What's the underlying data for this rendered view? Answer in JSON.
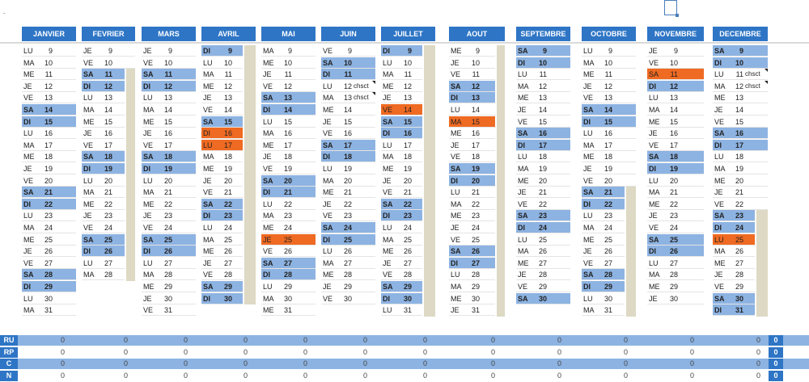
{
  "top_marker": "-",
  "months": [
    {
      "name": "JANVIER",
      "days": [
        [
          "LU",
          "9",
          ""
        ],
        [
          "MA",
          "10",
          ""
        ],
        [
          "ME",
          "11",
          ""
        ],
        [
          "JE",
          "12",
          ""
        ],
        [
          "VE",
          "13",
          ""
        ],
        [
          "SA",
          "14",
          "we"
        ],
        [
          "DI",
          "15",
          "we"
        ],
        [
          "LU",
          "16",
          ""
        ],
        [
          "MA",
          "17",
          ""
        ],
        [
          "ME",
          "18",
          ""
        ],
        [
          "JE",
          "19",
          ""
        ],
        [
          "VE",
          "20",
          ""
        ],
        [
          "SA",
          "21",
          "we"
        ],
        [
          "DI",
          "22",
          "we"
        ],
        [
          "LU",
          "23",
          ""
        ],
        [
          "MA",
          "24",
          ""
        ],
        [
          "ME",
          "25",
          ""
        ],
        [
          "JE",
          "26",
          ""
        ],
        [
          "VE",
          "27",
          ""
        ],
        [
          "SA",
          "28",
          "we"
        ],
        [
          "DI",
          "29",
          "we"
        ],
        [
          "LU",
          "30",
          ""
        ],
        [
          "MA",
          "31",
          ""
        ]
      ]
    },
    {
      "name": "FEVRIER",
      "days": [
        [
          "JE",
          "9",
          ""
        ],
        [
          "VE",
          "10",
          ""
        ],
        [
          "SA",
          "11",
          "we"
        ],
        [
          "DI",
          "12",
          "we"
        ],
        [
          "LU",
          "13",
          ""
        ],
        [
          "MA",
          "14",
          ""
        ],
        [
          "ME",
          "15",
          ""
        ],
        [
          "JE",
          "16",
          ""
        ],
        [
          "VE",
          "17",
          ""
        ],
        [
          "SA",
          "18",
          "we"
        ],
        [
          "DI",
          "19",
          "we"
        ],
        [
          "LU",
          "20",
          ""
        ],
        [
          "MA",
          "21",
          ""
        ],
        [
          "ME",
          "22",
          ""
        ],
        [
          "JE",
          "23",
          ""
        ],
        [
          "VE",
          "24",
          ""
        ],
        [
          "SA",
          "25",
          "we"
        ],
        [
          "DI",
          "26",
          "we"
        ],
        [
          "LU",
          "27",
          ""
        ],
        [
          "MA",
          "28",
          ""
        ]
      ]
    },
    {
      "name": "MARS",
      "days": [
        [
          "JE",
          "9",
          ""
        ],
        [
          "VE",
          "10",
          ""
        ],
        [
          "SA",
          "11",
          "we"
        ],
        [
          "DI",
          "12",
          "we"
        ],
        [
          "LU",
          "13",
          ""
        ],
        [
          "MA",
          "14",
          ""
        ],
        [
          "ME",
          "15",
          ""
        ],
        [
          "JE",
          "16",
          ""
        ],
        [
          "VE",
          "17",
          ""
        ],
        [
          "SA",
          "18",
          "we"
        ],
        [
          "DI",
          "19",
          "we"
        ],
        [
          "LU",
          "20",
          ""
        ],
        [
          "MA",
          "21",
          ""
        ],
        [
          "ME",
          "22",
          ""
        ],
        [
          "JE",
          "23",
          ""
        ],
        [
          "VE",
          "24",
          ""
        ],
        [
          "SA",
          "25",
          "we"
        ],
        [
          "DI",
          "26",
          "we"
        ],
        [
          "LU",
          "27",
          ""
        ],
        [
          "MA",
          "28",
          ""
        ],
        [
          "ME",
          "29",
          ""
        ],
        [
          "JE",
          "30",
          ""
        ],
        [
          "VE",
          "31",
          ""
        ]
      ]
    },
    {
      "name": "AVRIL",
      "days": [
        [
          "DI",
          "9",
          "we"
        ],
        [
          "LU",
          "10",
          ""
        ],
        [
          "MA",
          "11",
          ""
        ],
        [
          "ME",
          "12",
          ""
        ],
        [
          "JE",
          "13",
          ""
        ],
        [
          "VE",
          "14",
          ""
        ],
        [
          "SA",
          "15",
          "we"
        ],
        [
          "DI",
          "16",
          "hol"
        ],
        [
          "LU",
          "17",
          "hol"
        ],
        [
          "MA",
          "18",
          ""
        ],
        [
          "ME",
          "19",
          ""
        ],
        [
          "JE",
          "20",
          ""
        ],
        [
          "VE",
          "21",
          ""
        ],
        [
          "SA",
          "22",
          "we"
        ],
        [
          "DI",
          "23",
          "we"
        ],
        [
          "LU",
          "24",
          ""
        ],
        [
          "MA",
          "25",
          ""
        ],
        [
          "ME",
          "26",
          ""
        ],
        [
          "JE",
          "27",
          ""
        ],
        [
          "VE",
          "28",
          ""
        ],
        [
          "SA",
          "29",
          "we"
        ],
        [
          "DI",
          "30",
          "we"
        ]
      ]
    },
    {
      "name": "MAI",
      "days": [
        [
          "MA",
          "9",
          ""
        ],
        [
          "ME",
          "10",
          ""
        ],
        [
          "JE",
          "11",
          ""
        ],
        [
          "VE",
          "12",
          ""
        ],
        [
          "SA",
          "13",
          "we"
        ],
        [
          "DI",
          "14",
          "we"
        ],
        [
          "LU",
          "15",
          ""
        ],
        [
          "MA",
          "16",
          ""
        ],
        [
          "ME",
          "17",
          ""
        ],
        [
          "JE",
          "18",
          ""
        ],
        [
          "VE",
          "19",
          ""
        ],
        [
          "SA",
          "20",
          "we"
        ],
        [
          "DI",
          "21",
          "we"
        ],
        [
          "LU",
          "22",
          ""
        ],
        [
          "MA",
          "23",
          ""
        ],
        [
          "ME",
          "24",
          ""
        ],
        [
          "JE",
          "25",
          "hol"
        ],
        [
          "VE",
          "26",
          ""
        ],
        [
          "SA",
          "27",
          "we"
        ],
        [
          "DI",
          "28",
          "we"
        ],
        [
          "LU",
          "29",
          ""
        ],
        [
          "MA",
          "30",
          ""
        ],
        [
          "ME",
          "31",
          ""
        ]
      ]
    },
    {
      "name": "JUIN",
      "days": [
        [
          "VE",
          "9",
          ""
        ],
        [
          "SA",
          "10",
          "we"
        ],
        [
          "DI",
          "11",
          "we"
        ],
        [
          "LU",
          "12",
          "",
          "chsct"
        ],
        [
          "MA",
          "13",
          "",
          "chsct"
        ],
        [
          "ME",
          "14",
          ""
        ],
        [
          "JE",
          "15",
          ""
        ],
        [
          "VE",
          "16",
          ""
        ],
        [
          "SA",
          "17",
          "we"
        ],
        [
          "DI",
          "18",
          "we"
        ],
        [
          "LU",
          "19",
          ""
        ],
        [
          "MA",
          "20",
          ""
        ],
        [
          "ME",
          "21",
          ""
        ],
        [
          "JE",
          "22",
          ""
        ],
        [
          "VE",
          "23",
          ""
        ],
        [
          "SA",
          "24",
          "we"
        ],
        [
          "DI",
          "25",
          "we"
        ],
        [
          "LU",
          "26",
          ""
        ],
        [
          "MA",
          "27",
          ""
        ],
        [
          "ME",
          "28",
          ""
        ],
        [
          "JE",
          "29",
          ""
        ],
        [
          "VE",
          "30",
          ""
        ]
      ]
    },
    {
      "name": "JUILLET",
      "days": [
        [
          "DI",
          "9",
          "we"
        ],
        [
          "LU",
          "10",
          ""
        ],
        [
          "MA",
          "11",
          ""
        ],
        [
          "ME",
          "12",
          ""
        ],
        [
          "JE",
          "13",
          ""
        ],
        [
          "VE",
          "14",
          "hol"
        ],
        [
          "SA",
          "15",
          "we"
        ],
        [
          "DI",
          "16",
          "we"
        ],
        [
          "LU",
          "17",
          ""
        ],
        [
          "MA",
          "18",
          ""
        ],
        [
          "ME",
          "19",
          ""
        ],
        [
          "JE",
          "20",
          ""
        ],
        [
          "VE",
          "21",
          ""
        ],
        [
          "SA",
          "22",
          "we"
        ],
        [
          "DI",
          "23",
          "we"
        ],
        [
          "LU",
          "24",
          ""
        ],
        [
          "MA",
          "25",
          ""
        ],
        [
          "ME",
          "26",
          ""
        ],
        [
          "JE",
          "27",
          ""
        ],
        [
          "VE",
          "28",
          ""
        ],
        [
          "SA",
          "29",
          "we"
        ],
        [
          "DI",
          "30",
          "we"
        ],
        [
          "LU",
          "31",
          ""
        ]
      ]
    },
    {
      "name": "AOUT",
      "days": [
        [
          "ME",
          "9",
          ""
        ],
        [
          "JE",
          "10",
          ""
        ],
        [
          "VE",
          "11",
          ""
        ],
        [
          "SA",
          "12",
          "we"
        ],
        [
          "DI",
          "13",
          "we"
        ],
        [
          "LU",
          "14",
          ""
        ],
        [
          "MA",
          "15",
          "hol"
        ],
        [
          "ME",
          "16",
          ""
        ],
        [
          "JE",
          "17",
          ""
        ],
        [
          "VE",
          "18",
          ""
        ],
        [
          "SA",
          "19",
          "we"
        ],
        [
          "DI",
          "20",
          "we"
        ],
        [
          "LU",
          "21",
          ""
        ],
        [
          "MA",
          "22",
          ""
        ],
        [
          "ME",
          "23",
          ""
        ],
        [
          "JE",
          "24",
          ""
        ],
        [
          "VE",
          "25",
          ""
        ],
        [
          "SA",
          "26",
          "we"
        ],
        [
          "DI",
          "27",
          "we"
        ],
        [
          "LU",
          "28",
          ""
        ],
        [
          "MA",
          "29",
          ""
        ],
        [
          "ME",
          "30",
          ""
        ],
        [
          "JE",
          "31",
          ""
        ]
      ]
    },
    {
      "name": "SEPTEMBRE",
      "days": [
        [
          "SA",
          "9",
          "we"
        ],
        [
          "DI",
          "10",
          "we"
        ],
        [
          "LU",
          "11",
          ""
        ],
        [
          "MA",
          "12",
          ""
        ],
        [
          "ME",
          "13",
          ""
        ],
        [
          "JE",
          "14",
          ""
        ],
        [
          "VE",
          "15",
          ""
        ],
        [
          "SA",
          "16",
          "we"
        ],
        [
          "DI",
          "17",
          "we"
        ],
        [
          "LU",
          "18",
          ""
        ],
        [
          "MA",
          "19",
          ""
        ],
        [
          "ME",
          "20",
          ""
        ],
        [
          "JE",
          "21",
          ""
        ],
        [
          "VE",
          "22",
          ""
        ],
        [
          "SA",
          "23",
          "we"
        ],
        [
          "DI",
          "24",
          "we"
        ],
        [
          "LU",
          "25",
          ""
        ],
        [
          "MA",
          "26",
          ""
        ],
        [
          "ME",
          "27",
          ""
        ],
        [
          "JE",
          "28",
          ""
        ],
        [
          "VE",
          "29",
          ""
        ],
        [
          "SA",
          "30",
          "we"
        ]
      ]
    },
    {
      "name": "OCTOBRE",
      "days": [
        [
          "LU",
          "9",
          ""
        ],
        [
          "MA",
          "10",
          ""
        ],
        [
          "ME",
          "11",
          ""
        ],
        [
          "JE",
          "12",
          ""
        ],
        [
          "VE",
          "13",
          ""
        ],
        [
          "SA",
          "14",
          "we"
        ],
        [
          "DI",
          "15",
          "we"
        ],
        [
          "LU",
          "16",
          ""
        ],
        [
          "MA",
          "17",
          ""
        ],
        [
          "ME",
          "18",
          ""
        ],
        [
          "JE",
          "19",
          ""
        ],
        [
          "VE",
          "20",
          ""
        ],
        [
          "SA",
          "21",
          "we"
        ],
        [
          "DI",
          "22",
          "we"
        ],
        [
          "LU",
          "23",
          ""
        ],
        [
          "MA",
          "24",
          ""
        ],
        [
          "ME",
          "25",
          ""
        ],
        [
          "JE",
          "26",
          ""
        ],
        [
          "VE",
          "27",
          ""
        ],
        [
          "SA",
          "28",
          "we"
        ],
        [
          "DI",
          "29",
          "we"
        ],
        [
          "LU",
          "30",
          ""
        ],
        [
          "MA",
          "31",
          ""
        ]
      ]
    },
    {
      "name": "NOVEMBRE",
      "days": [
        [
          "JE",
          "9",
          ""
        ],
        [
          "VE",
          "10",
          ""
        ],
        [
          "SA",
          "11",
          "hol"
        ],
        [
          "DI",
          "12",
          "we"
        ],
        [
          "LU",
          "13",
          ""
        ],
        [
          "MA",
          "14",
          ""
        ],
        [
          "ME",
          "15",
          ""
        ],
        [
          "JE",
          "16",
          ""
        ],
        [
          "VE",
          "17",
          ""
        ],
        [
          "SA",
          "18",
          "we"
        ],
        [
          "DI",
          "19",
          "we"
        ],
        [
          "LU",
          "20",
          ""
        ],
        [
          "MA",
          "21",
          ""
        ],
        [
          "ME",
          "22",
          ""
        ],
        [
          "JE",
          "23",
          ""
        ],
        [
          "VE",
          "24",
          ""
        ],
        [
          "SA",
          "25",
          "we"
        ],
        [
          "DI",
          "26",
          "we"
        ],
        [
          "LU",
          "27",
          ""
        ],
        [
          "MA",
          "28",
          ""
        ],
        [
          "ME",
          "29",
          ""
        ],
        [
          "JE",
          "30",
          ""
        ]
      ]
    },
    {
      "name": "DECEMBRE",
      "days": [
        [
          "SA",
          "9",
          "we"
        ],
        [
          "DI",
          "10",
          "we"
        ],
        [
          "LU",
          "11",
          "",
          "chsct"
        ],
        [
          "MA",
          "12",
          "",
          "chsct"
        ],
        [
          "ME",
          "13",
          ""
        ],
        [
          "JE",
          "14",
          ""
        ],
        [
          "VE",
          "15",
          ""
        ],
        [
          "SA",
          "16",
          "we"
        ],
        [
          "DI",
          "17",
          "we"
        ],
        [
          "LU",
          "18",
          ""
        ],
        [
          "MA",
          "19",
          ""
        ],
        [
          "ME",
          "20",
          ""
        ],
        [
          "JE",
          "21",
          ""
        ],
        [
          "VE",
          "22",
          ""
        ],
        [
          "SA",
          "23",
          "we"
        ],
        [
          "DI",
          "24",
          "we"
        ],
        [
          "LU",
          "25",
          "hol"
        ],
        [
          "MA",
          "26",
          ""
        ],
        [
          "ME",
          "27",
          ""
        ],
        [
          "JE",
          "28",
          ""
        ],
        [
          "VE",
          "29",
          ""
        ],
        [
          "SA",
          "30",
          "we"
        ],
        [
          "DI",
          "31",
          "we"
        ]
      ]
    }
  ],
  "totals": {
    "rows": [
      {
        "label": "RU",
        "values": [
          "0",
          "0",
          "0",
          "0",
          "0",
          "0",
          "0",
          "0",
          "0",
          "0",
          "0",
          "0"
        ],
        "total": "0"
      },
      {
        "label": "RP",
        "values": [
          "0",
          "0",
          "0",
          "0",
          "0",
          "0",
          "0",
          "0",
          "0",
          "0",
          "0",
          "0"
        ],
        "total": "0"
      },
      {
        "label": "C",
        "values": [
          "0",
          "0",
          "0",
          "0",
          "0",
          "0",
          "0",
          "0",
          "0",
          "0",
          "0",
          "0"
        ],
        "total": "0"
      },
      {
        "label": "N",
        "values": [
          "0",
          "0",
          "0",
          "0",
          "0",
          "0",
          "0",
          "0",
          "0",
          "0",
          "0",
          "0"
        ],
        "total": "0"
      }
    ]
  },
  "colors": {
    "header": "#2e75c6",
    "weekend": "#8db3e2",
    "holiday": "#ef6a22",
    "bar": "#ddd9c4"
  }
}
